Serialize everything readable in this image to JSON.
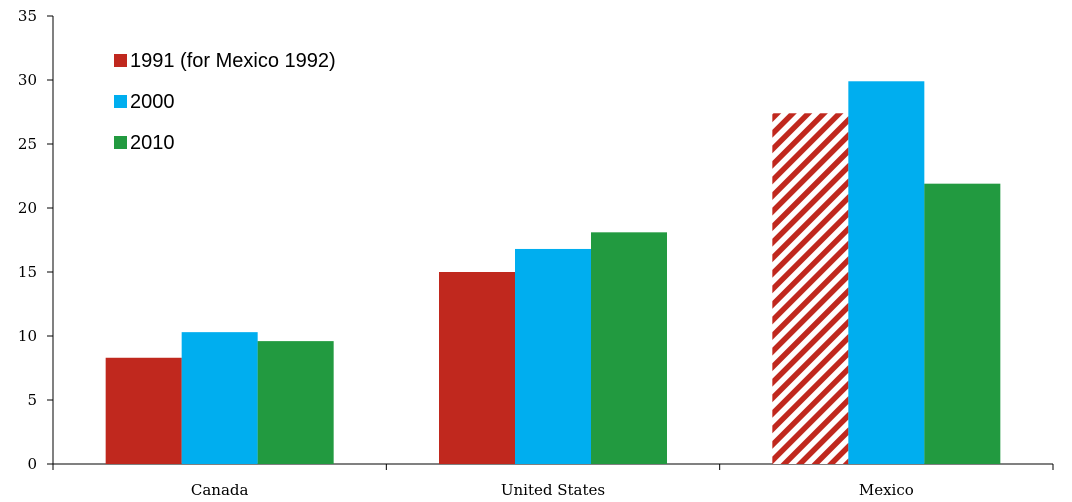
{
  "chart_data": {
    "type": "bar",
    "categories": [
      "Canada",
      "United States",
      "Mexico"
    ],
    "series": [
      {
        "name": "1991 (for Mexico 1992)",
        "values": [
          8.3,
          15.0,
          27.4
        ],
        "color": "#c0281e",
        "hatched_category": "Mexico"
      },
      {
        "name": "2000",
        "values": [
          10.3,
          16.8,
          29.9
        ],
        "color": "#00aeef"
      },
      {
        "name": "2010",
        "values": [
          9.6,
          18.1,
          21.9
        ],
        "color": "#229a40"
      }
    ],
    "ylim": [
      0,
      35
    ],
    "yticks": [
      0,
      5,
      10,
      15,
      20,
      25,
      30,
      35
    ],
    "title": "",
    "xlabel": "",
    "ylabel": "",
    "legend_position": "top-left",
    "grid": false
  }
}
